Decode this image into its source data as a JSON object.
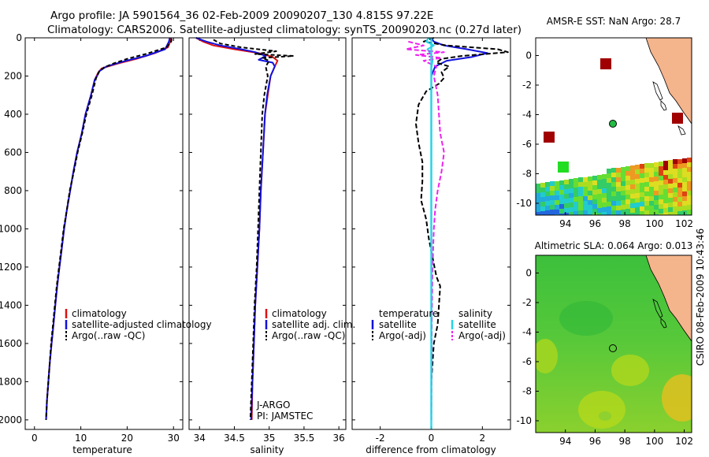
{
  "title_line1": "Argo profile: JA 5901564_36 02-Feb-2009 20090207_130 4.815S 97.22E",
  "title_line2": "Climatology: CARS2006. Satellite-adjusted climatology: synTS_20090203.nc (0.27d later)",
  "side_label": "CSIRO 08-Feb-2009 10:43:46",
  "colors": {
    "clim": "#dd1111",
    "sat": "#1111dd",
    "argo": "#000000",
    "sat_sal": "#22d4e6",
    "argo_sal": "#ee22ee"
  },
  "chart_data": [
    {
      "id": "temperature",
      "type": "line",
      "xlabel": "temperature",
      "xlim": [
        -2,
        32
      ],
      "xticks": [
        0,
        10,
        20,
        30
      ],
      "xticklabels": [
        "0",
        "10",
        "20",
        "30"
      ],
      "ylim": [
        2050,
        0
      ],
      "yticks": [
        0,
        200,
        400,
        600,
        800,
        1000,
        1200,
        1400,
        1600,
        1800,
        2000
      ],
      "yticklabels": [
        "0",
        "200",
        "400",
        "600",
        "800",
        "1000",
        "1200",
        "1400",
        "1600",
        "1800",
        "2000"
      ],
      "legend": [
        "climatology",
        "satellite-adjusted climatology",
        "Argo(..raw -QC)"
      ],
      "series": [
        {
          "name": "climatology",
          "color_key": "clim",
          "dash": "",
          "points": [
            [
              29.5,
              0
            ],
            [
              29.3,
              20
            ],
            [
              28.8,
              50
            ],
            [
              26,
              80
            ],
            [
              22,
              110
            ],
            [
              18,
              135
            ],
            [
              14.5,
              160
            ],
            [
              13.8,
              180
            ],
            [
              13,
              220
            ],
            [
              12.2,
              300
            ],
            [
              11,
              400
            ],
            [
              10.2,
              500
            ],
            [
              9.2,
              600
            ],
            [
              8.4,
              700
            ],
            [
              7.7,
              800
            ],
            [
              7,
              900
            ],
            [
              6.4,
              1000
            ],
            [
              5.9,
              1100
            ],
            [
              5.4,
              1200
            ],
            [
              4.9,
              1300
            ],
            [
              4.5,
              1400
            ],
            [
              4.1,
              1500
            ],
            [
              3.7,
              1600
            ],
            [
              3.3,
              1700
            ],
            [
              3,
              1800
            ],
            [
              2.7,
              1900
            ],
            [
              2.5,
              2000
            ]
          ]
        },
        {
          "name": "satellite-adjusted climatology",
          "color_key": "sat",
          "dash": "",
          "points": [
            [
              29.2,
              0
            ],
            [
              29,
              20
            ],
            [
              28.2,
              60
            ],
            [
              24,
              95
            ],
            [
              19,
              125
            ],
            [
              15.5,
              150
            ],
            [
              14,
              175
            ],
            [
              13.5,
              200
            ],
            [
              13,
              220
            ],
            [
              12.2,
              300
            ],
            [
              11,
              400
            ],
            [
              10.2,
              500
            ],
            [
              9.2,
              600
            ],
            [
              8.4,
              700
            ],
            [
              7.7,
              800
            ],
            [
              7,
              900
            ],
            [
              6.4,
              1000
            ],
            [
              5.9,
              1100
            ],
            [
              5.4,
              1200
            ],
            [
              4.9,
              1300
            ],
            [
              4.5,
              1400
            ],
            [
              4.1,
              1500
            ],
            [
              3.7,
              1600
            ],
            [
              3.3,
              1700
            ],
            [
              3,
              1800
            ],
            [
              2.7,
              1900
            ],
            [
              2.5,
              2000
            ]
          ]
        },
        {
          "name": "Argo(..raw -QC)",
          "color_key": "argo",
          "dash": "5,3",
          "points": [
            [
              29.6,
              5
            ],
            [
              29.5,
              20
            ],
            [
              28.5,
              50
            ],
            [
              24,
              85
            ],
            [
              20,
              110
            ],
            [
              17,
              135
            ],
            [
              15,
              155
            ],
            [
              14,
              175
            ],
            [
              13.3,
              210
            ],
            [
              12.4,
              300
            ],
            [
              11.2,
              400
            ],
            [
              10.3,
              500
            ],
            [
              9.3,
              600
            ],
            [
              8.5,
              700
            ],
            [
              7.6,
              800
            ],
            [
              7,
              900
            ],
            [
              6.3,
              1000
            ],
            [
              5.8,
              1100
            ],
            [
              5.3,
              1200
            ],
            [
              4.8,
              1300
            ],
            [
              4.4,
              1400
            ],
            [
              4,
              1500
            ],
            [
              3.6,
              1600
            ],
            [
              3.3,
              1700
            ],
            [
              3,
              1800
            ],
            [
              2.7,
              1900
            ],
            [
              2.5,
              2000
            ]
          ]
        }
      ]
    },
    {
      "id": "salinity",
      "type": "line",
      "xlabel": "salinity",
      "xlim": [
        33.85,
        36.1
      ],
      "xticks": [
        34,
        34.5,
        35,
        35.5,
        36
      ],
      "xticklabels": [
        "34",
        "34.5",
        "35",
        "35.5",
        "36"
      ],
      "ylim": [
        2050,
        0
      ],
      "legend": [
        "climatology",
        "satellite adj. clim.",
        "Argo(..raw -QC)"
      ],
      "annotations": [
        "J-ARGO",
        "PI: JAMSTEC"
      ],
      "series": [
        {
          "name": "climatology",
          "color_key": "clim",
          "dash": "",
          "points": [
            [
              33.95,
              0
            ],
            [
              34.05,
              20
            ],
            [
              34.2,
              40
            ],
            [
              34.5,
              60
            ],
            [
              34.85,
              80
            ],
            [
              35.05,
              100
            ],
            [
              35.12,
              120
            ],
            [
              35.08,
              150
            ],
            [
              35.02,
              200
            ],
            [
              34.98,
              300
            ],
            [
              34.94,
              400
            ],
            [
              34.91,
              600
            ],
            [
              34.88,
              800
            ],
            [
              34.86,
              1000
            ],
            [
              34.83,
              1200
            ],
            [
              34.8,
              1400
            ],
            [
              34.78,
              1600
            ],
            [
              34.76,
              1800
            ],
            [
              34.75,
              2000
            ]
          ]
        },
        {
          "name": "satellite adj. clim.",
          "color_key": "sat",
          "dash": "",
          "points": [
            [
              33.95,
              0
            ],
            [
              34.1,
              20
            ],
            [
              34.3,
              40
            ],
            [
              34.6,
              60
            ],
            [
              34.8,
              75
            ],
            [
              34.95,
              95
            ],
            [
              34.85,
              115
            ],
            [
              35.05,
              130
            ],
            [
              35.08,
              150
            ],
            [
              35.02,
              200
            ],
            [
              34.97,
              300
            ],
            [
              34.94,
              400
            ],
            [
              34.91,
              600
            ],
            [
              34.88,
              800
            ],
            [
              34.86,
              1000
            ],
            [
              34.83,
              1200
            ],
            [
              34.8,
              1400
            ],
            [
              34.78,
              1600
            ],
            [
              34.76,
              1800
            ],
            [
              34.74,
              2000
            ]
          ]
        },
        {
          "name": "Argo(..raw -QC)",
          "color_key": "argo",
          "dash": "5,3",
          "points": [
            [
              34.2,
              10
            ],
            [
              34.3,
              30
            ],
            [
              34.6,
              50
            ],
            [
              35.1,
              70
            ],
            [
              34.8,
              85
            ],
            [
              35.35,
              95
            ],
            [
              34.9,
              105
            ],
            [
              35,
              120
            ],
            [
              34.95,
              150
            ],
            [
              34.98,
              200
            ],
            [
              34.93,
              300
            ],
            [
              34.9,
              400
            ],
            [
              34.88,
              600
            ],
            [
              34.86,
              800
            ],
            [
              34.84,
              1000
            ],
            [
              34.82,
              1200
            ],
            [
              34.79,
              1400
            ],
            [
              34.77,
              1600
            ],
            [
              34.75,
              1800
            ],
            [
              34.73,
              2000
            ]
          ]
        }
      ]
    },
    {
      "id": "difference",
      "type": "line",
      "xlabel": "difference from climatology",
      "xlim": [
        -3.1,
        3.1
      ],
      "xticks": [
        -2,
        0,
        2
      ],
      "xticklabels": [
        "-2",
        "0",
        "2"
      ],
      "ylim": [
        2050,
        0
      ],
      "legend_left_title": "temperature",
      "legend_left": [
        "satellite",
        "Argo(-adj)"
      ],
      "legend_right_title": "salinity",
      "legend_right": [
        "satellite",
        "Argo(-adj)"
      ],
      "series": [
        {
          "name": "temperature satellite",
          "color_key": "sat",
          "dash": "",
          "points": [
            [
              0,
              0
            ],
            [
              0.1,
              20
            ],
            [
              0.5,
              40
            ],
            [
              1.4,
              60
            ],
            [
              2.2,
              80
            ],
            [
              1.6,
              100
            ],
            [
              0.6,
              120
            ],
            [
              0.15,
              150
            ],
            [
              0,
              200
            ],
            [
              0,
              400
            ],
            [
              0,
              800
            ],
            [
              0,
              1200
            ],
            [
              0,
              1600
            ],
            [
              0,
              2000
            ]
          ]
        },
        {
          "name": "temperature Argo(-adj)",
          "color_key": "argo",
          "dash": "6,3",
          "points": [
            [
              0.1,
              0
            ],
            [
              -0.3,
              20
            ],
            [
              0.6,
              40
            ],
            [
              2.6,
              60
            ],
            [
              3.0,
              75
            ],
            [
              1.2,
              95
            ],
            [
              0.4,
              110
            ],
            [
              0.2,
              130
            ],
            [
              0.7,
              150
            ],
            [
              0.4,
              180
            ],
            [
              0.5,
              210
            ],
            [
              0.3,
              240
            ],
            [
              -0.2,
              280
            ],
            [
              -0.5,
              350
            ],
            [
              -0.6,
              450
            ],
            [
              -0.5,
              550
            ],
            [
              -0.35,
              650
            ],
            [
              -0.35,
              750
            ],
            [
              -0.4,
              850
            ],
            [
              -0.2,
              950
            ],
            [
              -0.1,
              1050
            ],
            [
              0.05,
              1150
            ],
            [
              0.2,
              1250
            ],
            [
              0.35,
              1300
            ],
            [
              0.3,
              1400
            ],
            [
              0.25,
              1500
            ],
            [
              0.1,
              1600
            ],
            [
              0.05,
              1700
            ],
            [
              0,
              1800
            ],
            [
              0,
              2000
            ]
          ]
        },
        {
          "name": "salinity satellite",
          "color_key": "sat_sal",
          "dash": "",
          "points": [
            [
              -0.1,
              0
            ],
            [
              -0.2,
              20
            ],
            [
              0.1,
              40
            ],
            [
              -0.15,
              60
            ],
            [
              0,
              90
            ],
            [
              0.05,
              120
            ],
            [
              0,
              160
            ],
            [
              0,
              2000
            ]
          ]
        },
        {
          "name": "salinity Argo(-adj)",
          "color_key": "argo_sal",
          "dash": "6,3",
          "points": [
            [
              -0.9,
              20
            ],
            [
              -0.3,
              40
            ],
            [
              -1,
              60
            ],
            [
              0.5,
              75
            ],
            [
              -0.6,
              90
            ],
            [
              0.4,
              105
            ],
            [
              -0.3,
              120
            ],
            [
              0.2,
              150
            ],
            [
              0.1,
              200
            ],
            [
              0.25,
              300
            ],
            [
              0.3,
              400
            ],
            [
              0.35,
              500
            ],
            [
              0.5,
              600
            ],
            [
              0.4,
              700
            ],
            [
              0.25,
              800
            ],
            [
              0.15,
              900
            ],
            [
              0.1,
              1000
            ],
            [
              0.05,
              1200
            ],
            [
              0.02,
              1500
            ],
            [
              0,
              2000
            ]
          ]
        }
      ]
    },
    {
      "id": "sst_map",
      "type": "heatmap",
      "title": "AMSR-E SST: NaN Argo: 28.7",
      "xlim": [
        92,
        102.5
      ],
      "xticks": [
        94,
        96,
        98,
        100,
        102
      ],
      "xticklabels": [
        "94",
        "96",
        "98",
        "100",
        "102"
      ],
      "ylim": [
        -10.8,
        1.2
      ],
      "yticks": [
        0,
        -2,
        -4,
        -6,
        -8,
        -10
      ],
      "yticklabels": [
        "0",
        "-2",
        "-4",
        "-6",
        "-8",
        "-10"
      ],
      "profile_location": [
        97.22,
        -4.815
      ]
    },
    {
      "id": "sla_map",
      "type": "heatmap",
      "title": "Altimetric SLA: 0.064 Argo: 0.013",
      "xlim": [
        92,
        102.5
      ],
      "xticks": [
        94,
        96,
        98,
        100,
        102
      ],
      "xticklabels": [
        "94",
        "96",
        "98",
        "100",
        "102"
      ],
      "ylim": [
        -10.8,
        1.2
      ],
      "yticks": [
        0,
        -2,
        -4,
        -6,
        -8,
        -10
      ],
      "yticklabels": [
        "0",
        "-2",
        "-4",
        "-6",
        "-8",
        "-10"
      ],
      "profile_location": [
        97.22,
        -4.815
      ]
    }
  ]
}
